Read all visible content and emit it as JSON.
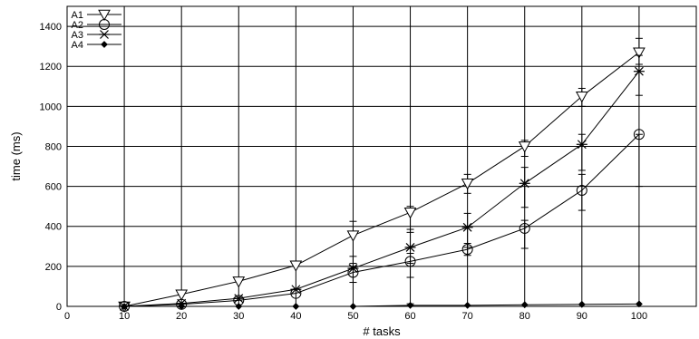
{
  "chart_data": {
    "type": "line",
    "xlabel": "# tasks",
    "ylabel": "time (ms)",
    "xlim": [
      0,
      110
    ],
    "ylim": [
      0,
      1500
    ],
    "xticks": [
      0,
      10,
      20,
      30,
      40,
      50,
      60,
      70,
      80,
      90,
      100
    ],
    "yticks": [
      0,
      200,
      400,
      600,
      800,
      1000,
      1200,
      1400
    ],
    "grid": true,
    "legend_position": "top-left",
    "x": [
      10,
      20,
      30,
      40,
      50,
      60,
      70,
      80,
      90,
      100
    ],
    "series": [
      {
        "name": "A1",
        "marker": "triangle-down",
        "values": [
          0,
          60,
          125,
          205,
          355,
          470,
          615,
          800,
          1050,
          1270
        ],
        "err_low": [
          0,
          0,
          0,
          0,
          140,
          100,
          50,
          50,
          50,
          60
        ],
        "err_high": [
          0,
          0,
          0,
          0,
          70,
          30,
          45,
          30,
          40,
          70
        ]
      },
      {
        "name": "A2",
        "marker": "circle",
        "values": [
          0,
          10,
          30,
          65,
          170,
          225,
          285,
          390,
          580,
          860
        ],
        "err_low": [
          0,
          0,
          0,
          0,
          50,
          80,
          30,
          100,
          100,
          260
        ],
        "err_high": [
          0,
          0,
          0,
          0,
          30,
          40,
          30,
          40,
          80,
          0
        ]
      },
      {
        "name": "A3",
        "marker": "asterisk",
        "values": [
          0,
          15,
          40,
          85,
          190,
          295,
          395,
          615,
          810,
          1175
        ],
        "err_low": [
          0,
          0,
          0,
          0,
          70,
          80,
          100,
          120,
          130,
          120
        ],
        "err_high": [
          0,
          0,
          0,
          0,
          60,
          90,
          70,
          80,
          50,
          80
        ]
      },
      {
        "name": "A4",
        "marker": "diamond",
        "values": [
          0,
          0,
          0,
          0,
          0,
          5,
          5,
          8,
          10,
          12
        ],
        "err_low": [
          0,
          0,
          0,
          0,
          0,
          0,
          0,
          0,
          0,
          0
        ],
        "err_high": [
          0,
          0,
          0,
          0,
          0,
          8,
          0,
          0,
          0,
          0
        ]
      }
    ]
  }
}
